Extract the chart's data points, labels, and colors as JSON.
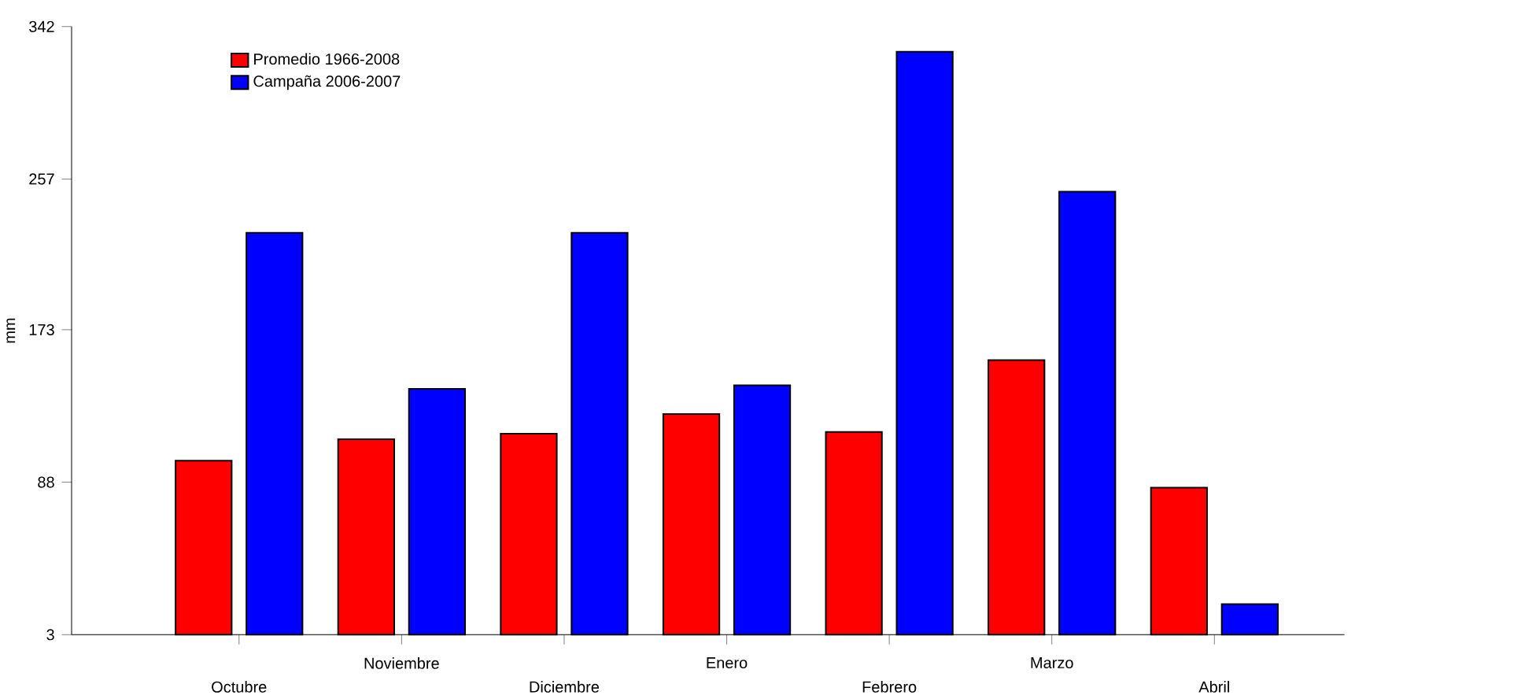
{
  "chart_data": {
    "type": "bar",
    "ylabel": "mm",
    "categories": [
      "Octubre",
      "Noviembre",
      "Diciembre",
      "Enero",
      "Febrero",
      "Marzo",
      "Abril"
    ],
    "series": [
      {
        "name": "Promedio 1966-2008",
        "color": "#ff0000",
        "values": [
          100,
          112,
          115,
          126,
          116,
          156,
          85
        ]
      },
      {
        "name": "Campaña 2006-2007",
        "color": "#0000ff",
        "values": [
          227,
          140,
          227,
          142,
          328,
          250,
          20
        ]
      }
    ],
    "ylim": [
      3,
      342
    ],
    "yticks": [
      3,
      88,
      173,
      257,
      342
    ],
    "grid": false,
    "legend": "top left"
  }
}
